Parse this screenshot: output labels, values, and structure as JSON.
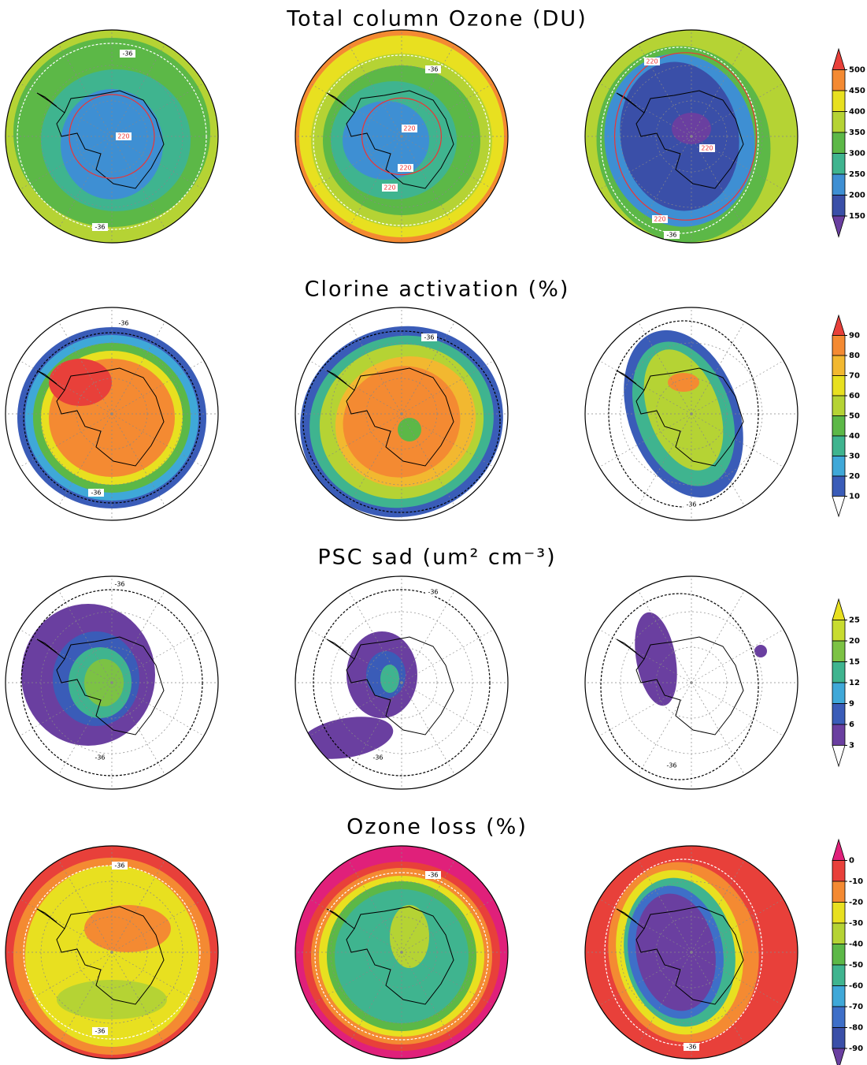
{
  "rows": [
    {
      "title": "Total column Ozone (DU)",
      "colorbar": {
        "ticks": [
          500,
          450,
          400,
          350,
          300,
          250,
          200,
          150
        ],
        "colors": [
          "#e8403a",
          "#f48a32",
          "#e8e020",
          "#b5d334",
          "#5cb847",
          "#3fb48f",
          "#3e8fd3",
          "#3a4fa8",
          "#6a3fa0"
        ]
      },
      "panels": [
        {
          "contour_labels": [
            "-36",
            "-36",
            "220"
          ]
        },
        {
          "contour_labels": [
            "-36",
            "220",
            "220",
            "220"
          ]
        },
        {
          "contour_labels": [
            "220",
            "220",
            "220",
            "-36"
          ]
        }
      ]
    },
    {
      "title": "Clorine activation (%)",
      "colorbar": {
        "ticks": [
          90,
          80,
          70,
          60,
          50,
          40,
          30,
          20,
          10
        ],
        "colors": [
          "#e8403a",
          "#f48a32",
          "#f2b830",
          "#e8e020",
          "#b5d334",
          "#5cb847",
          "#3fb48f",
          "#3fa8d8",
          "#3a5cb8",
          "#ffffff"
        ]
      },
      "panels": [
        {
          "contour_labels": [
            "-36",
            "-36"
          ]
        },
        {
          "contour_labels": [
            "-36"
          ]
        },
        {
          "contour_labels": [
            "-36"
          ]
        }
      ]
    },
    {
      "title": "PSC sad (um² cm⁻³)",
      "colorbar": {
        "ticks": [
          25,
          20,
          15,
          12,
          9,
          6,
          3
        ],
        "colors": [
          "#e8e020",
          "#c8dc30",
          "#7cc244",
          "#3fb48f",
          "#3fa8d8",
          "#3a5cb8",
          "#6a3fa0",
          "#ffffff"
        ]
      },
      "panels": [
        {
          "contour_labels": [
            "-36",
            "-36"
          ]
        },
        {
          "contour_labels": [
            "-36",
            "-36"
          ]
        },
        {
          "contour_labels": [
            "-36"
          ]
        }
      ]
    },
    {
      "title": "Ozone loss (%)",
      "colorbar": {
        "ticks": [
          0,
          -10,
          -20,
          -30,
          -40,
          -50,
          -60,
          -70,
          -80,
          -90
        ],
        "colors": [
          "#e0207a",
          "#e8403a",
          "#f48a32",
          "#e8e020",
          "#b5d334",
          "#5cb847",
          "#3fb48f",
          "#3fa8d8",
          "#3e6fc8",
          "#3a4fa8",
          "#6a3fa0"
        ]
      },
      "panels": [
        {
          "contour_labels": [
            "-36",
            "-36"
          ]
        },
        {
          "contour_labels": [
            "-36"
          ]
        },
        {
          "contour_labels": [
            "-36"
          ]
        }
      ]
    }
  ]
}
